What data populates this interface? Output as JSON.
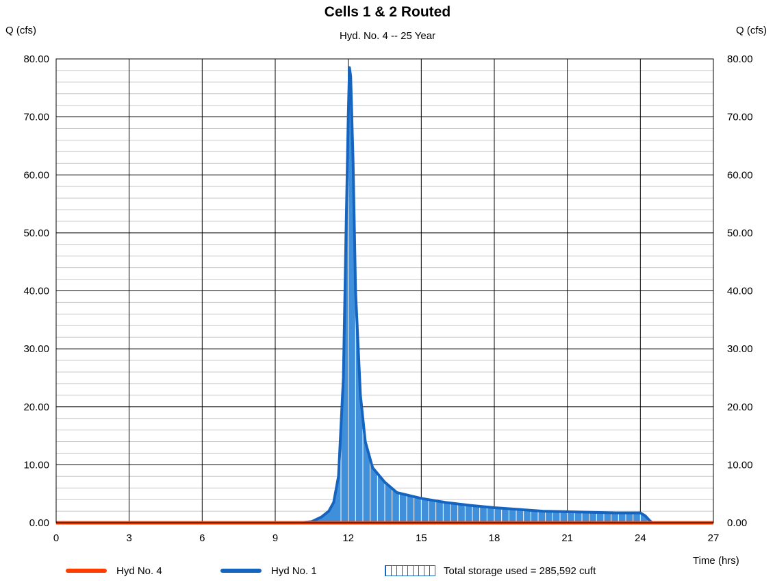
{
  "chart_data": {
    "type": "area",
    "title": "Cells 1 & 2 Routed",
    "subtitle": "Hyd. No. 4 -- 25 Year",
    "ylabel_left": "Q (cfs)",
    "ylabel_right": "Q (cfs)",
    "xlabel": "Time (hrs)",
    "xlim": [
      0,
      27
    ],
    "ylim": [
      0,
      80
    ],
    "x_ticks": [
      "0",
      "3",
      "6",
      "9",
      "12",
      "15",
      "18",
      "21",
      "24",
      "27"
    ],
    "y_ticks": [
      "0.00",
      "10.00",
      "20.00",
      "30.00",
      "40.00",
      "50.00",
      "60.00",
      "70.00",
      "80.00"
    ],
    "grid": true,
    "series": [
      {
        "name": "Hyd No. 4",
        "color": "#ff3d00",
        "x": [
          0,
          27
        ],
        "y": [
          0,
          0
        ]
      },
      {
        "name": "Hyd No. 1",
        "color": "#1565c0",
        "fill": "#3f8fdb",
        "x": [
          0,
          10.0,
          10.5,
          10.9,
          11.2,
          11.4,
          11.6,
          11.8,
          11.9,
          12.0,
          12.05,
          12.1,
          12.2,
          12.3,
          12.5,
          12.7,
          13.0,
          13.5,
          14.0,
          14.5,
          15.0,
          16.0,
          17.0,
          18.0,
          19.0,
          20.0,
          21.0,
          22.0,
          23.0,
          24.0,
          24.2,
          24.4,
          24.5,
          27
        ],
        "y": [
          0,
          0,
          0.2,
          1.0,
          2.0,
          3.5,
          8.0,
          25.0,
          48.0,
          70.0,
          78.5,
          77.0,
          62.0,
          40.0,
          22.0,
          14.0,
          9.5,
          7.0,
          5.2,
          4.7,
          4.2,
          3.5,
          3.0,
          2.6,
          2.3,
          2.0,
          1.9,
          1.8,
          1.7,
          1.7,
          1.2,
          0.3,
          0,
          0
        ]
      }
    ],
    "legend": [
      {
        "label": "Hyd No. 4",
        "kind": "line",
        "color": "#ff3d00"
      },
      {
        "label": "Hyd No. 1",
        "kind": "line",
        "color": "#1565c0"
      },
      {
        "label": "Total storage used = 285,592 cuft",
        "kind": "hatch",
        "color": "#1565c0"
      }
    ],
    "legend_placement": "bottom"
  }
}
